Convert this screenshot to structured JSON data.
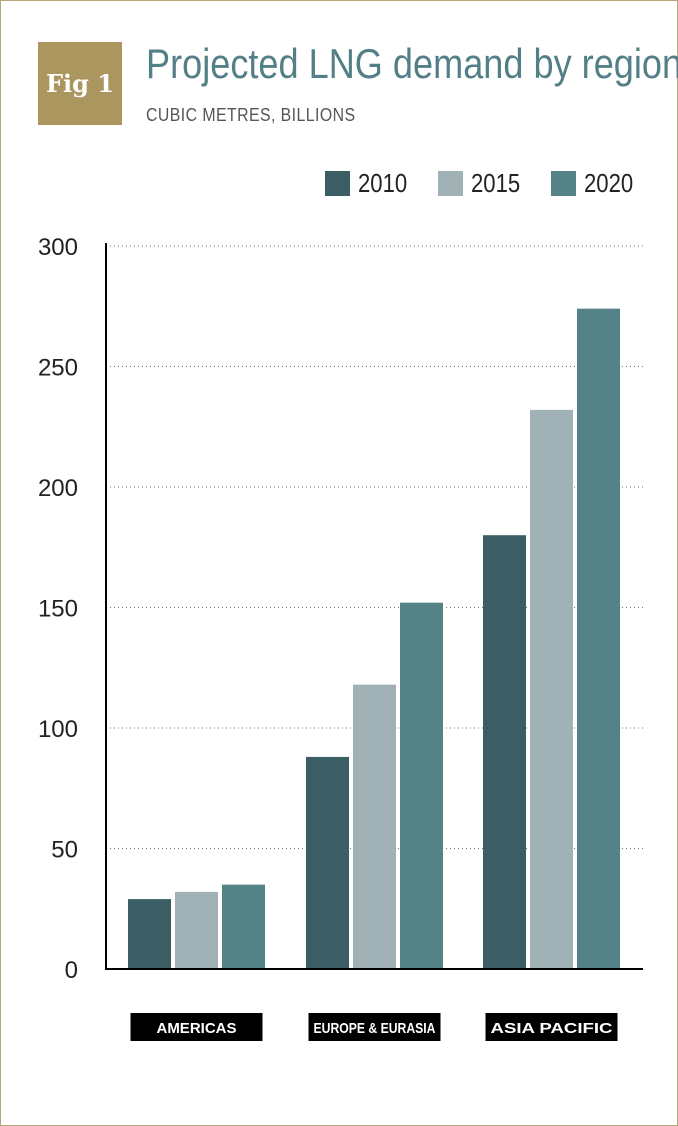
{
  "badge": "Fig 1",
  "chart_data": {
    "type": "bar",
    "title": "Projected LNG demand by region",
    "subtitle": "CUBIC METRES, BILLIONS",
    "categories": [
      "AMERICAS",
      "EUROPE & EURASIA",
      "ASIA PACIFIC"
    ],
    "series": [
      {
        "name": "2010",
        "color": "#3a5e64",
        "values": [
          29,
          88,
          180
        ]
      },
      {
        "name": "2015",
        "color": "#a1b2b6",
        "values": [
          32,
          118,
          232
        ]
      },
      {
        "name": "2020",
        "color": "#548286",
        "values": [
          35,
          152,
          274
        ]
      }
    ],
    "y_ticks": [
      "0",
      "50",
      "100",
      "150",
      "200",
      "250",
      "300"
    ],
    "ylim": [
      0,
      300
    ],
    "grid": true,
    "legend_position": "top-right"
  }
}
